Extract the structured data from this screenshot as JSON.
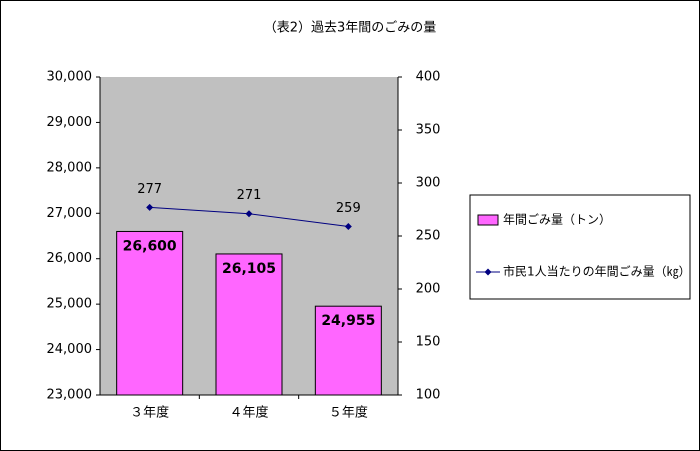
{
  "chart_data": {
    "type": "bar",
    "title": "（表2）過去3年間のごみの量",
    "categories": [
      "３年度",
      "４年度",
      "５年度"
    ],
    "series": [
      {
        "name": "年間ごみ量（トン）",
        "type": "bar",
        "color": "#ff66ff",
        "values": [
          26600,
          26105,
          24955
        ],
        "value_labels": [
          "26,600",
          "26,105",
          "24,955"
        ]
      },
      {
        "name": "市民1人当たりの年間ごみ量（㎏）",
        "type": "line",
        "axis": "y2",
        "color": "#000080",
        "values": [
          277,
          271,
          259
        ]
      }
    ],
    "ylim": [
      23000,
      30000
    ],
    "yticks": [
      {
        "value": 23000,
        "label": "23,000"
      },
      {
        "value": 24000,
        "label": "24,000"
      },
      {
        "value": 25000,
        "label": "25,000"
      },
      {
        "value": 26000,
        "label": "26,000"
      },
      {
        "value": 27000,
        "label": "27,000"
      },
      {
        "value": 28000,
        "label": "28,000"
      },
      {
        "value": 29000,
        "label": "29,000"
      },
      {
        "value": 30000,
        "label": "30,000"
      }
    ],
    "y2lim": [
      100,
      400
    ],
    "y2ticks": [
      100,
      150,
      200,
      250,
      300,
      350,
      400
    ],
    "plot_background": "#c0c0c0",
    "legend": "right"
  }
}
